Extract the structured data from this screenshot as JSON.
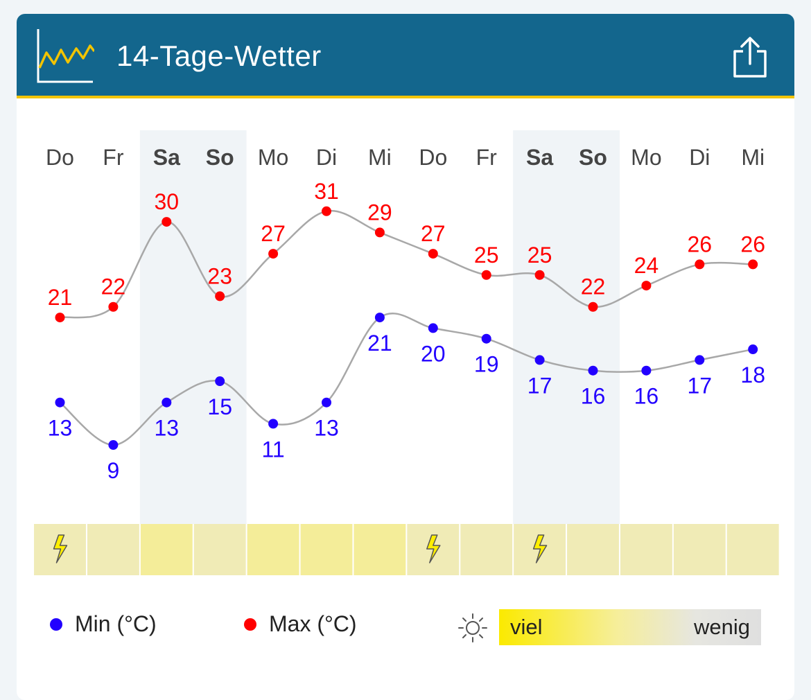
{
  "header": {
    "title": "14-Tage-Wetter"
  },
  "chart_data": {
    "type": "line",
    "days": [
      "Do",
      "Fr",
      "Sa",
      "So",
      "Mo",
      "Di",
      "Mi",
      "Do",
      "Fr",
      "Sa",
      "So",
      "Mo",
      "Di",
      "Mi"
    ],
    "weekend_days": [
      2,
      3,
      9,
      10
    ],
    "series": [
      {
        "name": "Max (°C)",
        "color": "#ff0000",
        "values": [
          21,
          22,
          30,
          23,
          27,
          31,
          29,
          27,
          25,
          25,
          22,
          24,
          26,
          26
        ]
      },
      {
        "name": "Min (°C)",
        "color": "#2200ff",
        "values": [
          13,
          9,
          13,
          15,
          11,
          13,
          21,
          20,
          19,
          17,
          16,
          16,
          17,
          18
        ]
      }
    ],
    "sunshine_levels": [
      0.35,
      0.35,
      0.9,
      0.35,
      0.9,
      0.9,
      0.9,
      0.35,
      0.35,
      0.35,
      0.35,
      0.35,
      0.35,
      0.35
    ],
    "thunderstorm_days": [
      0,
      7,
      9
    ],
    "line_color": "#a8a8a8"
  },
  "legend": {
    "min_label": "Min (°C)",
    "max_label": "Max (°C)",
    "sun_high": "viel",
    "sun_low": "wenig",
    "min_color": "#2200ff",
    "max_color": "#ff0000"
  }
}
